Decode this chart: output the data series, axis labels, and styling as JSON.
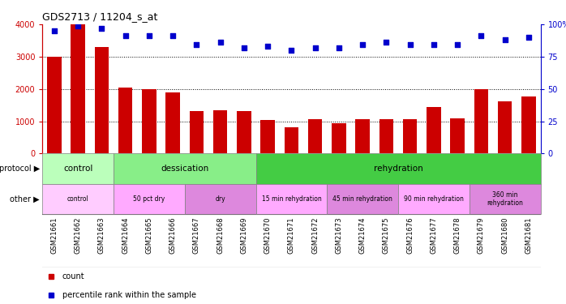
{
  "title": "GDS2713 / 11204_s_at",
  "samples": [
    "GSM21661",
    "GSM21662",
    "GSM21663",
    "GSM21664",
    "GSM21665",
    "GSM21666",
    "GSM21667",
    "GSM21668",
    "GSM21669",
    "GSM21670",
    "GSM21671",
    "GSM21672",
    "GSM21673",
    "GSM21674",
    "GSM21675",
    "GSM21676",
    "GSM21677",
    "GSM21678",
    "GSM21679",
    "GSM21680",
    "GSM21681"
  ],
  "counts": [
    3000,
    4000,
    3300,
    2050,
    2000,
    1900,
    1320,
    1340,
    1310,
    1050,
    820,
    1060,
    930,
    1060,
    1060,
    1060,
    1430,
    1100,
    2000,
    1620,
    1760
  ],
  "percentile": [
    95,
    99,
    97,
    91,
    91,
    91,
    84,
    86,
    82,
    83,
    80,
    82,
    82,
    84,
    86,
    84,
    84,
    84,
    91,
    88,
    90
  ],
  "bar_color": "#cc0000",
  "dot_color": "#0000cc",
  "ylim_left": [
    0,
    4000
  ],
  "ylim_right": [
    0,
    100
  ],
  "yticks_left": [
    0,
    1000,
    2000,
    3000,
    4000
  ],
  "yticks_right": [
    0,
    25,
    50,
    75,
    100
  ],
  "ytick_labels_right": [
    "0",
    "25",
    "50",
    "75",
    "100%"
  ],
  "protocol_groups": [
    {
      "label": "control",
      "start": 0,
      "end": 3,
      "color": "#bbffbb"
    },
    {
      "label": "dessication",
      "start": 3,
      "end": 9,
      "color": "#88ee88"
    },
    {
      "label": "rehydration",
      "start": 9,
      "end": 21,
      "color": "#44cc44"
    }
  ],
  "other_groups": [
    {
      "label": "control",
      "start": 0,
      "end": 3,
      "color": "#ffccff"
    },
    {
      "label": "50 pct dry",
      "start": 3,
      "end": 6,
      "color": "#ffaaff"
    },
    {
      "label": "dry",
      "start": 6,
      "end": 9,
      "color": "#dd88dd"
    },
    {
      "label": "15 min rehydration",
      "start": 9,
      "end": 12,
      "color": "#ffaaff"
    },
    {
      "label": "45 min rehydration",
      "start": 12,
      "end": 15,
      "color": "#dd88dd"
    },
    {
      "label": "90 min rehydration",
      "start": 15,
      "end": 18,
      "color": "#ffaaff"
    },
    {
      "label": "360 min\nrehydration",
      "start": 18,
      "end": 21,
      "color": "#dd88dd"
    }
  ],
  "legend_items": [
    {
      "label": "count",
      "color": "#cc0000"
    },
    {
      "label": "percentile rank within the sample",
      "color": "#0000cc"
    }
  ],
  "background_color": "#ffffff",
  "tick_color_left": "#cc0000",
  "tick_color_right": "#0000cc",
  "xtick_bg": "#dddddd"
}
